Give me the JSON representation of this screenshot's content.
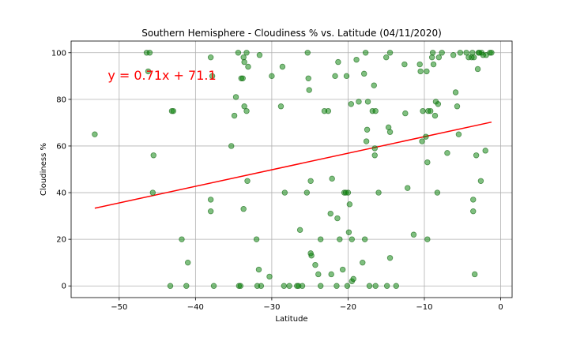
{
  "chart_data": {
    "type": "scatter",
    "title": "Southern Hemisphere - Cloudiness % vs. Latitude (04/11/2020)",
    "xlabel": "Latitude",
    "ylabel": "Cloudiness %",
    "xlim": [
      -56.3,
      1.5
    ],
    "ylim": [
      -5,
      105
    ],
    "xticks": [
      -50,
      -40,
      -30,
      -20,
      -10,
      0
    ],
    "yticks": [
      0,
      20,
      40,
      60,
      80,
      100
    ],
    "grid": true,
    "point_color": "#008000",
    "point_edge_color": "#1a6b1a",
    "line_color": "#ff0000",
    "regression": {
      "slope": 0.71,
      "intercept": 71.1,
      "x_range": [
        -53.2,
        -1.2
      ]
    },
    "annotation": {
      "text": "y = 0.71x + 71.1",
      "x": -51.5,
      "y": 90.5,
      "color": "#ff0000"
    },
    "points": [
      [
        -53.2,
        65
      ],
      [
        -46.4,
        100
      ],
      [
        -46.0,
        100
      ],
      [
        -46.2,
        92
      ],
      [
        -45.5,
        56
      ],
      [
        -45.6,
        40
      ],
      [
        -43.1,
        75
      ],
      [
        -42.9,
        75
      ],
      [
        -43.3,
        0
      ],
      [
        -41.8,
        20
      ],
      [
        -41.0,
        10
      ],
      [
        -41.2,
        0
      ],
      [
        -38.0,
        98
      ],
      [
        -37.8,
        90
      ],
      [
        -38.0,
        37
      ],
      [
        -38.0,
        32
      ],
      [
        -37.6,
        0
      ],
      [
        -35.3,
        60
      ],
      [
        -34.9,
        73
      ],
      [
        -34.7,
        81
      ],
      [
        -34.4,
        100
      ],
      [
        -34.3,
        0
      ],
      [
        -34.1,
        0
      ],
      [
        -34.0,
        89
      ],
      [
        -33.8,
        89
      ],
      [
        -33.7,
        98
      ],
      [
        -33.6,
        96
      ],
      [
        -33.3,
        100
      ],
      [
        -33.1,
        94
      ],
      [
        -33.6,
        77
      ],
      [
        -33.3,
        75
      ],
      [
        -33.7,
        33
      ],
      [
        -33.2,
        45
      ],
      [
        -32.0,
        20
      ],
      [
        -31.9,
        0
      ],
      [
        -31.7,
        7
      ],
      [
        -31.6,
        99
      ],
      [
        -31.4,
        0
      ],
      [
        -30.3,
        4
      ],
      [
        -30.0,
        90
      ],
      [
        -28.8,
        77
      ],
      [
        -28.6,
        94
      ],
      [
        -28.3,
        40
      ],
      [
        -28.4,
        0
      ],
      [
        -27.7,
        0
      ],
      [
        -26.7,
        0
      ],
      [
        -26.5,
        0
      ],
      [
        -26.3,
        24
      ],
      [
        -26.0,
        0
      ],
      [
        -25.3,
        100
      ],
      [
        -25.2,
        89
      ],
      [
        -25.1,
        84
      ],
      [
        -25.4,
        40
      ],
      [
        -24.9,
        45
      ],
      [
        -24.9,
        14
      ],
      [
        -24.8,
        13
      ],
      [
        -24.3,
        9
      ],
      [
        -23.9,
        5
      ],
      [
        -23.6,
        0
      ],
      [
        -23.6,
        20
      ],
      [
        -23.1,
        75
      ],
      [
        -22.6,
        75
      ],
      [
        -22.3,
        31
      ],
      [
        -22.1,
        46
      ],
      [
        -22.2,
        5
      ],
      [
        -21.7,
        90
      ],
      [
        -21.5,
        0
      ],
      [
        -21.4,
        29
      ],
      [
        -21.3,
        96
      ],
      [
        -21.1,
        20
      ],
      [
        -20.7,
        7
      ],
      [
        -20.5,
        40
      ],
      [
        -20.3,
        40
      ],
      [
        -20.2,
        90
      ],
      [
        -20.1,
        0
      ],
      [
        -20.0,
        40
      ],
      [
        -19.9,
        23
      ],
      [
        -19.8,
        35
      ],
      [
        -19.6,
        78
      ],
      [
        -19.5,
        20
      ],
      [
        -19.5,
        2
      ],
      [
        -19.3,
        3
      ],
      [
        -18.9,
        97
      ],
      [
        -18.6,
        79
      ],
      [
        -18.1,
        10
      ],
      [
        -17.9,
        91
      ],
      [
        -17.8,
        20
      ],
      [
        -17.7,
        100
      ],
      [
        -17.6,
        62
      ],
      [
        -17.5,
        67
      ],
      [
        -17.4,
        79
      ],
      [
        -17.2,
        0
      ],
      [
        -16.8,
        75
      ],
      [
        -16.6,
        86
      ],
      [
        -16.5,
        59
      ],
      [
        -16.5,
        56
      ],
      [
        -16.4,
        75
      ],
      [
        -16.4,
        0
      ],
      [
        -16.0,
        40
      ],
      [
        -15.0,
        98
      ],
      [
        -14.9,
        0
      ],
      [
        -14.7,
        68
      ],
      [
        -14.5,
        100
      ],
      [
        -14.5,
        66
      ],
      [
        -14.5,
        12
      ],
      [
        -13.7,
        0
      ],
      [
        -12.6,
        95
      ],
      [
        -12.5,
        74
      ],
      [
        -12.2,
        42
      ],
      [
        -11.4,
        22
      ],
      [
        -10.6,
        95
      ],
      [
        -10.5,
        92
      ],
      [
        -10.3,
        62
      ],
      [
        -10.2,
        75
      ],
      [
        -9.8,
        64
      ],
      [
        -9.7,
        92
      ],
      [
        -9.6,
        53
      ],
      [
        -9.6,
        20
      ],
      [
        -9.5,
        75
      ],
      [
        -9.2,
        75
      ],
      [
        -9.0,
        98
      ],
      [
        -8.9,
        100
      ],
      [
        -8.8,
        95
      ],
      [
        -8.6,
        73
      ],
      [
        -8.5,
        79
      ],
      [
        -8.3,
        40
      ],
      [
        -8.2,
        78
      ],
      [
        -8.1,
        98
      ],
      [
        -7.7,
        100
      ],
      [
        -7.0,
        57
      ],
      [
        -6.2,
        99
      ],
      [
        -5.9,
        83
      ],
      [
        -5.7,
        77
      ],
      [
        -5.5,
        65
      ],
      [
        -5.3,
        100
      ],
      [
        -4.5,
        100
      ],
      [
        -4.2,
        98
      ],
      [
        -3.8,
        98
      ],
      [
        -3.7,
        100
      ],
      [
        -3.6,
        37
      ],
      [
        -3.6,
        32
      ],
      [
        -3.4,
        5
      ],
      [
        -3.5,
        98
      ],
      [
        -3.2,
        56
      ],
      [
        -3.0,
        93
      ],
      [
        -2.9,
        100
      ],
      [
        -2.8,
        100
      ],
      [
        -2.6,
        45
      ],
      [
        -2.5,
        100
      ],
      [
        -2.3,
        99
      ],
      [
        -2.0,
        58
      ],
      [
        -1.9,
        99
      ],
      [
        -1.4,
        100
      ],
      [
        -1.2,
        100
      ]
    ]
  }
}
